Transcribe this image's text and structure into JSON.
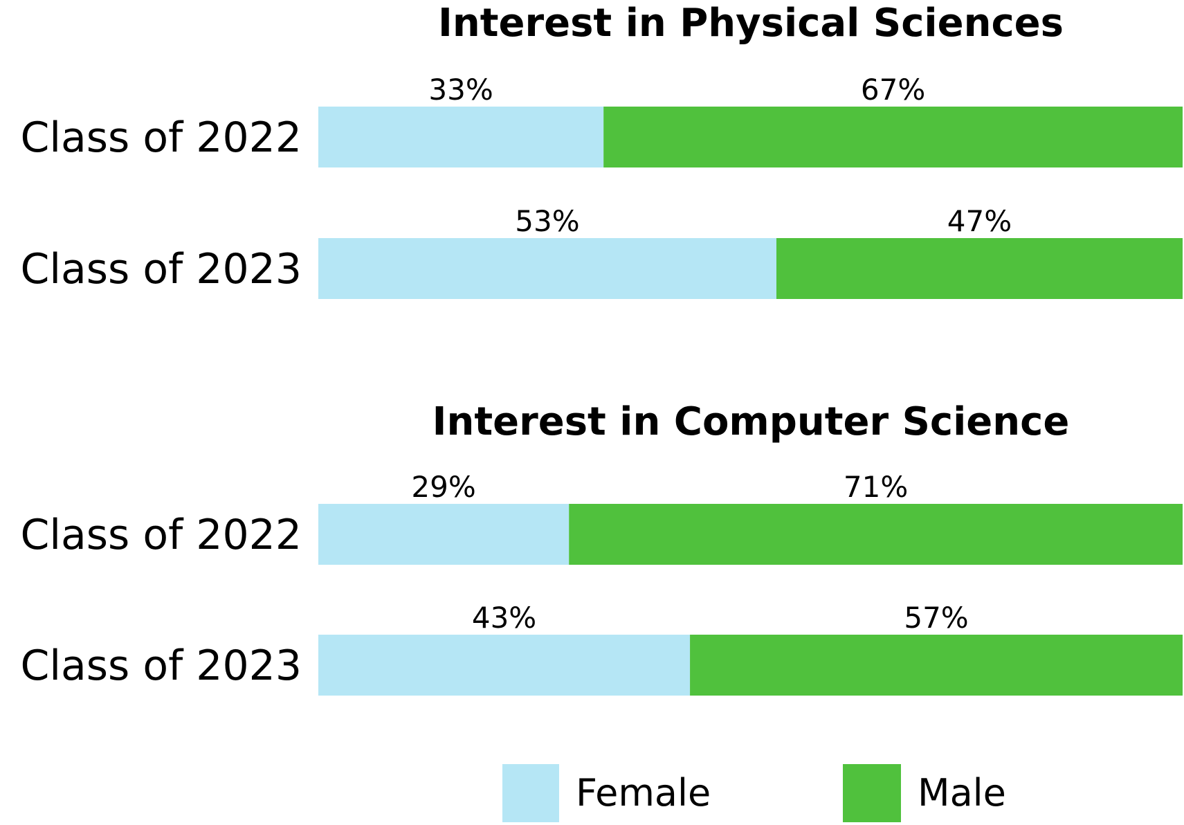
{
  "colors": {
    "female": "#b5e6f5",
    "male": "#50c13d"
  },
  "chart_data": [
    {
      "type": "bar",
      "orientation": "horizontal",
      "stacked": true,
      "title": "Interest in Physical Sciences",
      "categories": [
        "Class of 2022",
        "Class of 2023"
      ],
      "series": [
        {
          "name": "Female",
          "values": [
            33,
            53
          ],
          "labels": [
            "33%",
            "53%"
          ]
        },
        {
          "name": "Male",
          "values": [
            67,
            47
          ],
          "labels": [
            "67%",
            "47%"
          ]
        }
      ],
      "xlim": [
        0,
        100
      ]
    },
    {
      "type": "bar",
      "orientation": "horizontal",
      "stacked": true,
      "title": "Interest in Computer Science",
      "categories": [
        "Class of 2022",
        "Class of 2023"
      ],
      "series": [
        {
          "name": "Female",
          "values": [
            29,
            43
          ],
          "labels": [
            "29%",
            "43%"
          ]
        },
        {
          "name": "Male",
          "values": [
            71,
            57
          ],
          "labels": [
            "71%",
            "57%"
          ]
        }
      ],
      "xlim": [
        0,
        100
      ]
    }
  ],
  "legend": {
    "items": [
      {
        "label": "Female"
      },
      {
        "label": "Male"
      }
    ]
  }
}
